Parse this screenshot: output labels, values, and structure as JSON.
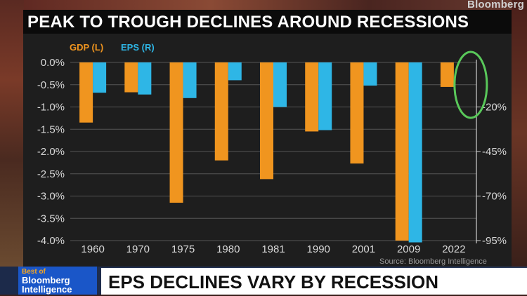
{
  "brand": "Bloomberg",
  "title": "PEAK TO TROUGH DECLINES AROUND RECESSIONS",
  "lower_third": {
    "logo_line1": "Best of",
    "logo_line2": "Bloomberg",
    "logo_line3": "Intelligence",
    "headline": "EPS DECLINES VARY BY RECESSION"
  },
  "chart_data": {
    "type": "bar",
    "title": "PEAK TO TROUGH DECLINES AROUND RECESSIONS",
    "source": "Source: Bloomberg Intelligence",
    "categories": [
      "1960",
      "1970",
      "1975",
      "1980",
      "1981",
      "1990",
      "2001",
      "2009",
      "2022"
    ],
    "series": [
      {
        "name": "GDP (L)",
        "axis": "left",
        "color": "#f0951f",
        "values": [
          -1.35,
          -0.67,
          -3.15,
          -2.2,
          -2.62,
          -1.55,
          -2.27,
          -4.0,
          -0.55
        ]
      },
      {
        "name": "EPS (R)",
        "axis": "right",
        "color": "#2eb6e6",
        "values": [
          -12,
          -13,
          -15,
          -5,
          -20,
          -33,
          -8,
          -96,
          null
        ]
      }
    ],
    "y_left": {
      "ylim": [
        -4.0,
        0.0
      ],
      "ticks": [
        0.0,
        -0.5,
        -1.0,
        -1.5,
        -2.0,
        -2.5,
        -3.0,
        -3.5,
        -4.0
      ],
      "tick_labels": [
        "0.0%",
        "-0.5%",
        "-1.0%",
        "-1.5%",
        "-2.0%",
        "-2.5%",
        "-3.0%",
        "-3.5%",
        "-4.0%"
      ]
    },
    "y_right": {
      "ylim": [
        -95,
        5
      ],
      "ticks": [
        -20,
        -45,
        -70,
        -95
      ],
      "tick_labels": [
        "-20%",
        "-45%",
        "-70%",
        "-95%"
      ]
    },
    "legend": [
      "GDP (L)",
      "EPS (R)"
    ],
    "legend_position": "top-left",
    "grid": true,
    "annotation": "green circle highlighting 2022",
    "annotation_color": "#59c85a"
  }
}
